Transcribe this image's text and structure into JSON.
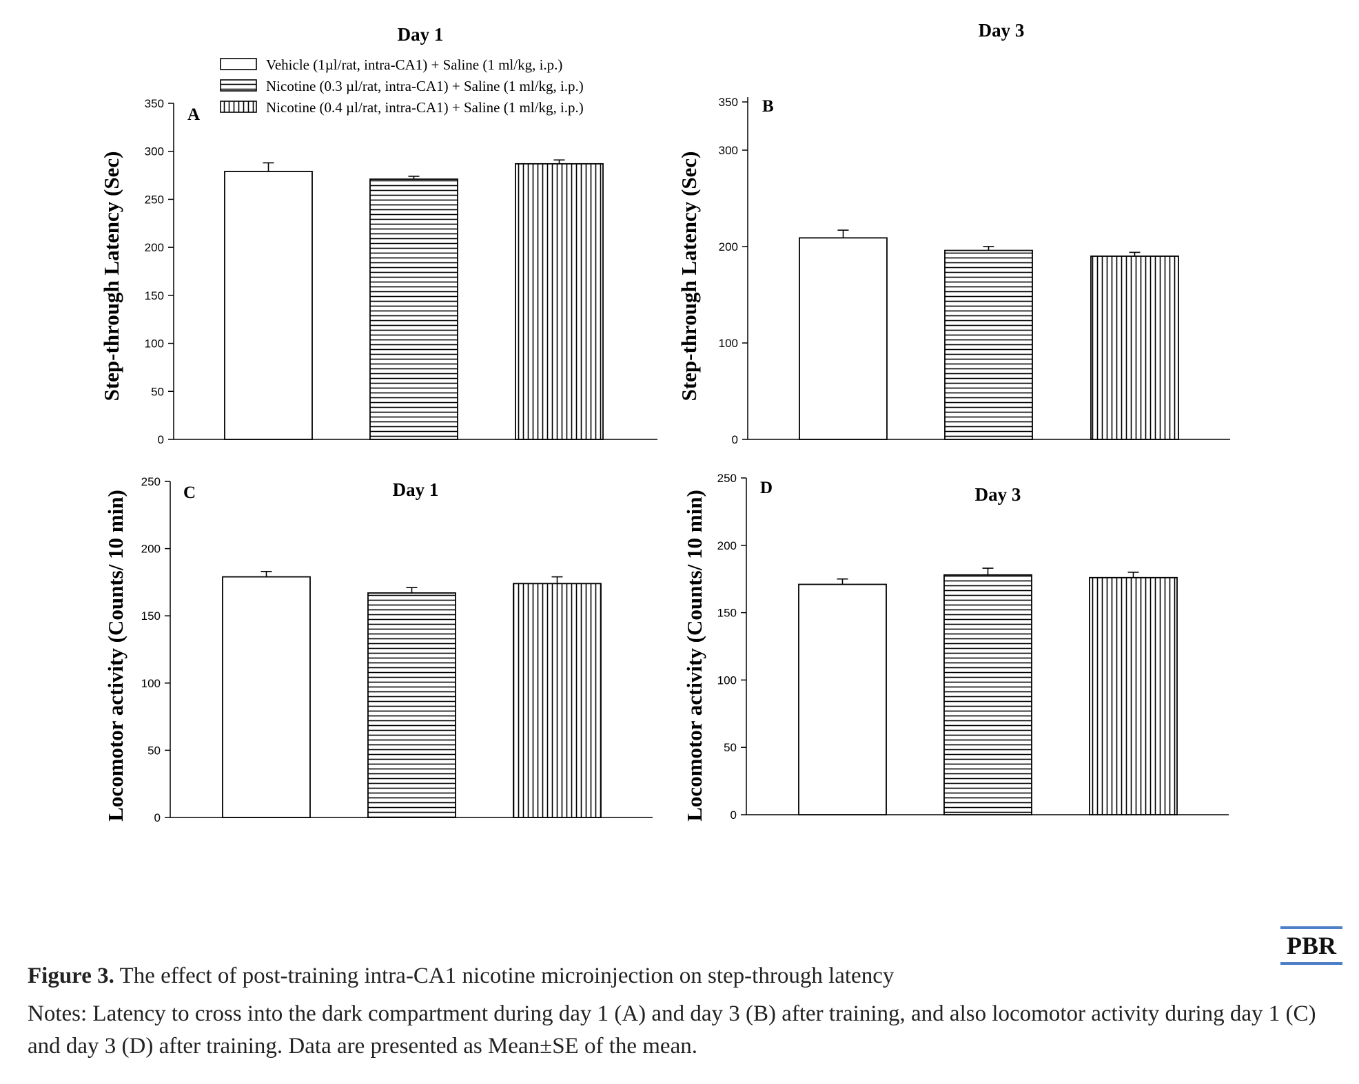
{
  "figure": {
    "caption_label": "Figure 3.",
    "caption_title": "The effect of post-training intra-CA1 nicotine microinjection on step-through latency",
    "notes": "Notes: Latency to cross into the dark compartment during day 1 (A) and day 3 (B) after training, and also locomotor activity during day 1 (C) and day 3 (D) after training. Data are presented as Mean±SE of the mean.",
    "logo": "PBR"
  },
  "legend": [
    {
      "label": "Vehicle (1µl/rat, intra-CA1) + Saline (1 ml/kg, i.p.)",
      "pattern": "open"
    },
    {
      "label": "Nicotine (0.3 µl/rat, intra-CA1) + Saline (1 ml/kg, i.p.)",
      "pattern": "horizontal"
    },
    {
      "label": "Nicotine (0.4 µl/rat, intra-CA1) + Saline (1 ml/kg, i.p.)",
      "pattern": "vertical"
    }
  ],
  "chart_data": [
    {
      "type": "bar",
      "panel": "A",
      "title": "Day 1",
      "ylabel": "Step-through Latency (Sec)",
      "ylim": [
        0,
        350
      ],
      "yticks": [
        0,
        50,
        100,
        150,
        200,
        250,
        300,
        350
      ],
      "values": [
        279,
        271,
        287
      ],
      "errors": [
        9,
        3,
        4
      ]
    },
    {
      "type": "bar",
      "panel": "B",
      "title": "Day 3",
      "ylabel": "Step-through Latency (Sec)",
      "ylim": [
        0,
        355
      ],
      "yticks": [
        0,
        100,
        200,
        300,
        350
      ],
      "values": [
        209,
        196,
        190
      ],
      "errors": [
        8,
        4,
        4
      ]
    },
    {
      "type": "bar",
      "panel": "C",
      "title": "Day 1",
      "ylabel": "Locomotor activity (Counts/ 10 min)",
      "ylim": [
        0,
        250
      ],
      "yticks": [
        0,
        50,
        100,
        150,
        200,
        250
      ],
      "values": [
        179,
        167,
        174
      ],
      "errors": [
        4,
        4,
        5
      ]
    },
    {
      "type": "bar",
      "panel": "D",
      "title": "Day 3",
      "ylabel": "Locomotor activity (Counts/ 10 min)",
      "ylim": [
        0,
        250
      ],
      "yticks": [
        0,
        50,
        100,
        150,
        200,
        250
      ],
      "values": [
        171,
        178,
        176
      ],
      "errors": [
        4,
        5,
        4
      ]
    }
  ]
}
